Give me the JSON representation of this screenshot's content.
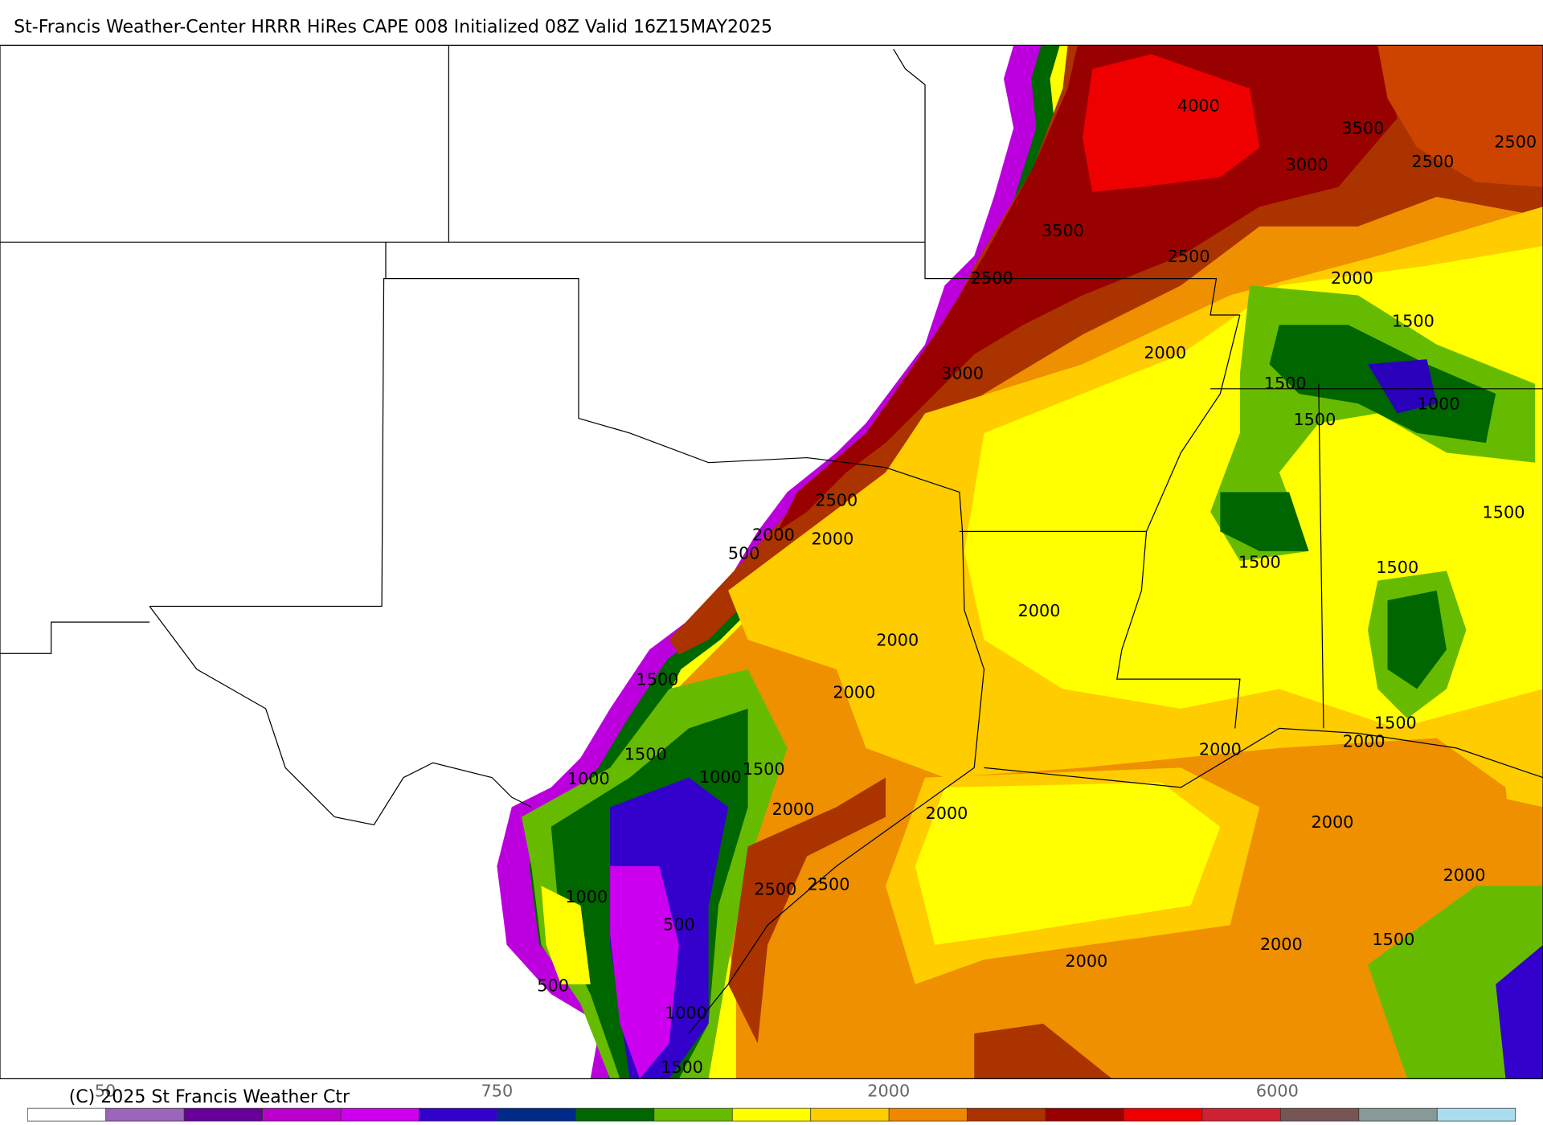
{
  "title": "St-Francis Weather-Center HRRR HiRes CAPE  008 Initialized  08Z Valid 16Z15MAY2025",
  "copyright": "(C) 2025 St Francis Weather Ctr",
  "colorbar": {
    "colors": [
      "#ffffff",
      "#9966bb",
      "#660099",
      "#bb00cc",
      "#cc00ee",
      "#3300cc",
      "#002a88",
      "#006600",
      "#66bb00",
      "#ffff00",
      "#ffcc00",
      "#ee8800",
      "#aa3300",
      "#990000",
      "#ee0000",
      "#cc2233",
      "#775555",
      "#889999",
      "#aaddee"
    ],
    "labels": [
      "50",
      "750",
      "2000",
      "6000"
    ]
  },
  "contour_labels": [
    "4000",
    "3500",
    "3000",
    "2500",
    "2500",
    "3500",
    "2500",
    "2500",
    "2000",
    "1500",
    "2000",
    "3000",
    "1500",
    "1000",
    "1500",
    "2500",
    "1500",
    "2000",
    "2000",
    "500",
    "1500",
    "1500",
    "2000",
    "2000",
    "1500",
    "2000",
    "1500",
    "2000",
    "2000",
    "1500",
    "1500",
    "1000",
    "1000",
    "2000",
    "2000",
    "2000",
    "2000",
    "2500",
    "2500",
    "1000",
    "500",
    "1500",
    "2000",
    "2000",
    "500",
    "1000",
    "1500"
  ]
}
